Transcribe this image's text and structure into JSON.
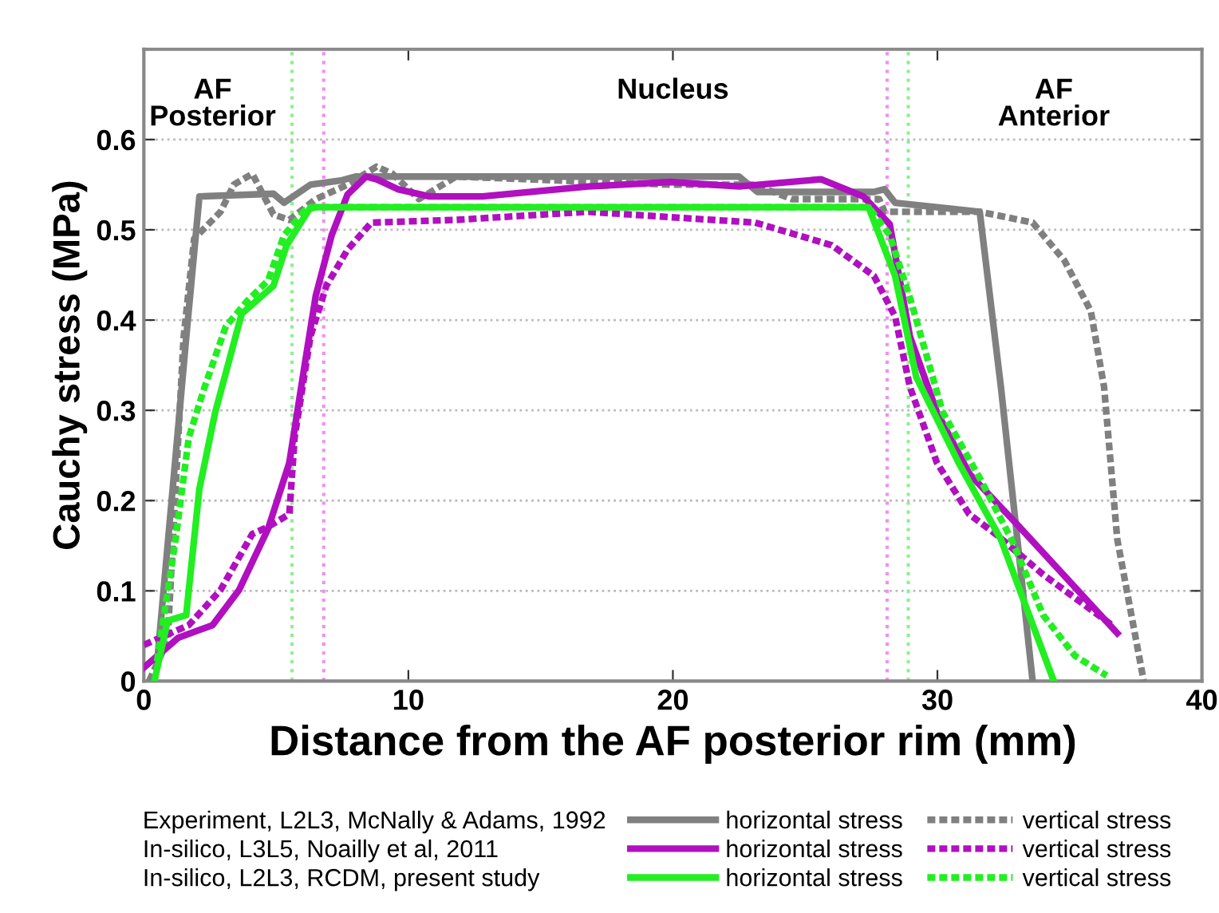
{
  "chart_data": {
    "type": "line",
    "xlabel": "Distance from the AF posterior rim (mm)",
    "ylabel": "Cauchy stress (MPa)",
    "xlim": [
      0,
      40
    ],
    "xticks": [
      0,
      10,
      20,
      30,
      40
    ],
    "ylim": [
      0,
      0.7
    ],
    "yticks": [
      0,
      0.1,
      0.2,
      0.3,
      0.4,
      0.5,
      0.6
    ],
    "grid": "y",
    "legend": "bottom",
    "annotations": [
      "AF\nPosterior",
      "Nucleus",
      "AF\nAnterior",
      "Experiment, L2L3, McNally & Adams, 1992",
      "In-silico, L3L5, Noailly et al, 2011",
      "In-silico, L2L3, RCDM, present study"
    ],
    "ref_lines": [
      {
        "axis": "x",
        "value": 5.6,
        "color": "#90ee90",
        "line_style": "dotted"
      },
      {
        "axis": "x",
        "value": 6.8,
        "color": "#f090f0",
        "line_style": "dotted"
      },
      {
        "axis": "x",
        "value": 28.1,
        "color": "#f090f0",
        "line_style": "dotted"
      },
      {
        "axis": "x",
        "value": 28.9,
        "color": "#90ee90",
        "line_style": "dotted"
      }
    ],
    "series": [
      {
        "name": "horizontal stress",
        "color": "#808080",
        "line_style": "solid",
        "x": [
          0.5,
          1.6,
          2.1,
          4.9,
          5.3,
          6.3,
          7.5,
          8.0,
          19.9,
          22.5,
          23.2,
          27.6,
          28.0,
          28.4,
          31.6,
          32.4,
          33.6
        ],
        "values": [
          0.02,
          0.38,
          0.537,
          0.54,
          0.53,
          0.55,
          0.555,
          0.559,
          0.559,
          0.559,
          0.542,
          0.542,
          0.545,
          0.53,
          0.52,
          0.326,
          0
        ]
      },
      {
        "name": "vertical stress",
        "color": "#808080",
        "line_style": "dotted",
        "x": [
          0.2,
          0.9,
          1.5,
          1.9,
          2.9,
          3.4,
          4.1,
          4.9,
          5.5,
          6.5,
          7.7,
          8.8,
          9.4,
          10.4,
          11.8,
          19.9,
          23.1,
          24.5,
          27.8,
          28.0,
          31.6,
          33.6,
          34.8,
          35.8,
          36.3,
          36.8,
          37.8
        ],
        "values": [
          0,
          0.045,
          0.38,
          0.49,
          0.52,
          0.55,
          0.562,
          0.517,
          0.511,
          0.534,
          0.55,
          0.57,
          0.562,
          0.534,
          0.559,
          0.55,
          0.55,
          0.534,
          0.534,
          0.52,
          0.52,
          0.508,
          0.466,
          0.41,
          0.326,
          0.157,
          0
        ]
      },
      {
        "name": "horizontal stress",
        "color": "#b010c0",
        "line_style": "solid",
        "x": [
          0,
          1.3,
          2.6,
          3.6,
          4.7,
          5.5,
          6.1,
          6.5,
          7.1,
          7.7,
          8.4,
          8.8,
          9.6,
          10.8,
          12.8,
          16.8,
          19.9,
          22.5,
          25.6,
          27.2,
          28.2,
          28.96,
          29.98,
          31.2,
          33.0,
          36.8
        ],
        "values": [
          0.015,
          0.048,
          0.062,
          0.101,
          0.169,
          0.242,
          0.354,
          0.427,
          0.494,
          0.539,
          0.559,
          0.556,
          0.545,
          0.537,
          0.537,
          0.548,
          0.553,
          0.548,
          0.556,
          0.537,
          0.506,
          0.382,
          0.298,
          0.23,
          0.174,
          0.053
        ]
      },
      {
        "name": "vertical stress",
        "color": "#b010c0",
        "line_style": "dotted",
        "x": [
          0,
          1.7,
          2.9,
          4.1,
          4.7,
          5.5,
          5.7,
          6.3,
          6.9,
          7.7,
          8.6,
          11.8,
          16.8,
          19.9,
          23.1,
          26.0,
          27.6,
          28.4,
          28.96,
          29.98,
          31.2,
          32.2,
          34.0,
          36.6
        ],
        "values": [
          0.04,
          0.062,
          0.101,
          0.163,
          0.171,
          0.185,
          0.27,
          0.382,
          0.438,
          0.478,
          0.508,
          0.511,
          0.52,
          0.514,
          0.508,
          0.483,
          0.449,
          0.404,
          0.326,
          0.242,
          0.185,
          0.163,
          0.118,
          0.062
        ]
      },
      {
        "name": "horizontal stress",
        "color": "#22ee22",
        "line_style": "solid",
        "x": [
          0.4,
          0.9,
          1.6,
          2.1,
          2.7,
          3.7,
          4.9,
          5.4,
          6.3,
          27.4,
          28.4,
          29.2,
          30.8,
          32.4,
          34.4
        ],
        "values": [
          0,
          0.067,
          0.073,
          0.213,
          0.298,
          0.407,
          0.438,
          0.483,
          0.525,
          0.525,
          0.449,
          0.337,
          0.242,
          0.157,
          0
        ]
      },
      {
        "name": "vertical stress",
        "color": "#22ee22",
        "line_style": "dotted",
        "x": [
          0.5,
          1.2,
          1.7,
          2.3,
          3.1,
          3.9,
          4.7,
          5.3,
          6.1,
          6.5,
          27.4,
          28.2,
          29.0,
          30.2,
          31.6,
          32.8,
          34.0,
          35.2,
          36.4
        ],
        "values": [
          0.022,
          0.157,
          0.27,
          0.326,
          0.393,
          0.421,
          0.444,
          0.494,
          0.522,
          0.525,
          0.525,
          0.494,
          0.421,
          0.298,
          0.225,
          0.157,
          0.073,
          0.028,
          0.006
        ]
      }
    ]
  }
}
